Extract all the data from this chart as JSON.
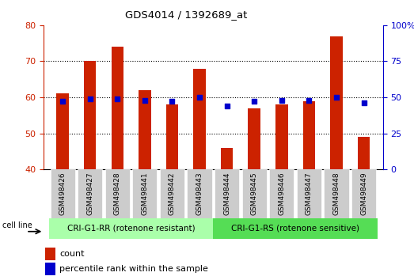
{
  "title": "GDS4014 / 1392689_at",
  "categories": [
    "GSM498426",
    "GSM498427",
    "GSM498428",
    "GSM498441",
    "GSM498442",
    "GSM498443",
    "GSM498444",
    "GSM498445",
    "GSM498446",
    "GSM498447",
    "GSM498448",
    "GSM498449"
  ],
  "count_values": [
    61,
    70,
    74,
    62,
    58,
    68,
    46,
    57,
    58,
    59,
    77,
    49
  ],
  "percentile_values": [
    47,
    49,
    49,
    48,
    47,
    50,
    44,
    47,
    48,
    48,
    50,
    46
  ],
  "bar_color": "#CC2200",
  "dot_color": "#0000CC",
  "left_ylim": [
    40,
    80
  ],
  "right_ylim": [
    0,
    100
  ],
  "left_yticks": [
    40,
    50,
    60,
    70,
    80
  ],
  "right_yticks": [
    0,
    25,
    50,
    75,
    100
  ],
  "right_yticklabels": [
    "0",
    "25",
    "50",
    "75",
    "100%"
  ],
  "group1_label": "CRI-G1-RR (rotenone resistant)",
  "group2_label": "CRI-G1-RS (rotenone sensitive)",
  "group1_color": "#AAFFAA",
  "group2_color": "#55DD55",
  "n_group1": 6,
  "n_group2": 6,
  "legend_count": "count",
  "legend_percentile": "percentile rank within the sample",
  "cell_line_label": "cell line",
  "tick_bg_color": "#CCCCCC",
  "bar_width": 0.45
}
